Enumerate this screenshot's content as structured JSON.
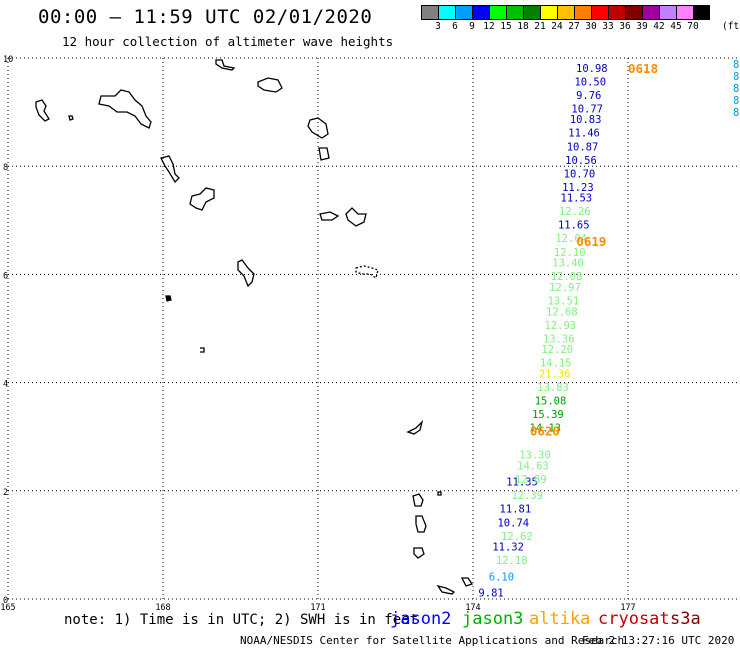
{
  "header": {
    "title": "00:00 – 11:59 UTC 02/01/2020",
    "subtitle": "12 hour collection of altimeter wave heights"
  },
  "swh_scale": {
    "colors": [
      "#808080",
      "#00ffff",
      "#00a0ff",
      "#0000ff",
      "#00ff00",
      "#00c000",
      "#008000",
      "#ffff00",
      "#ffc000",
      "#ff8000",
      "#ff0000",
      "#c00000",
      "#800000",
      "#a000a0",
      "#c080ff",
      "#ff80ff",
      "#000000"
    ],
    "labels": [
      "3",
      "6",
      "9",
      "12",
      "15",
      "18",
      "21",
      "24",
      "27",
      "30",
      "33",
      "36",
      "39",
      "42",
      "45",
      "70"
    ],
    "unit": "(ft)"
  },
  "map": {
    "lat_ticks": [
      "10",
      "8",
      "6",
      "4",
      "2",
      "0"
    ],
    "lon_ticks": [
      "165",
      "168",
      "171",
      "174",
      "177"
    ],
    "pass_labels": [
      {
        "text": "0618",
        "lat": 9.8,
        "lon": 177.0
      },
      {
        "text": "0619",
        "lat": 6.6,
        "lon": 176.0
      },
      {
        "text": "0620",
        "lat": 3.1,
        "lon": 175.1
      }
    ],
    "swh_tracks": [
      {
        "satellite": "jason2",
        "color": "#0000c0",
        "points": [
          {
            "lat": 9.8,
            "lon": 176.3,
            "swh": "10.98"
          },
          {
            "lat": 9.55,
            "lon": 176.27,
            "swh": "10.50"
          },
          {
            "lat": 9.3,
            "lon": 176.24,
            "swh": "9.76"
          },
          {
            "lat": 9.05,
            "lon": 176.21,
            "swh": "10.77"
          },
          {
            "lat": 8.85,
            "lon": 176.18,
            "swh": "10.83"
          },
          {
            "lat": 8.6,
            "lon": 176.15,
            "swh": "11.46"
          },
          {
            "lat": 8.35,
            "lon": 176.12,
            "swh": "10.87"
          },
          {
            "lat": 8.1,
            "lon": 176.09,
            "swh": "10.56"
          },
          {
            "lat": 7.85,
            "lon": 176.06,
            "swh": "10.70"
          },
          {
            "lat": 7.6,
            "lon": 176.03,
            "swh": "11.23"
          },
          {
            "lat": 7.4,
            "lon": 176.0,
            "swh": "11.53"
          },
          {
            "lat": 6.9,
            "lon": 175.95,
            "swh": "11.65"
          },
          {
            "lat": 2.15,
            "lon": 174.95,
            "swh": "11.35"
          },
          {
            "lat": 1.65,
            "lon": 174.82,
            "swh": "11.81"
          },
          {
            "lat": 1.4,
            "lon": 174.78,
            "swh": "10.74"
          },
          {
            "lat": 0.95,
            "lon": 174.68,
            "swh": "11.32"
          },
          {
            "lat": 0.1,
            "lon": 174.35,
            "swh": "9.81"
          }
        ]
      },
      {
        "satellite": "jason3",
        "color": "#80f080",
        "points": [
          {
            "lat": 7.15,
            "lon": 175.97,
            "swh": "12.26"
          },
          {
            "lat": 6.65,
            "lon": 175.9,
            "swh": "12.04"
          },
          {
            "lat": 6.4,
            "lon": 175.87,
            "swh": "12.10"
          },
          {
            "lat": 6.2,
            "lon": 175.84,
            "swh": "13.40"
          },
          {
            "lat": 5.95,
            "lon": 175.81,
            "swh": "12.08"
          },
          {
            "lat": 5.75,
            "lon": 175.78,
            "swh": "12.97"
          },
          {
            "lat": 5.5,
            "lon": 175.75,
            "swh": "13.51"
          },
          {
            "lat": 5.3,
            "lon": 175.72,
            "swh": "12.68"
          },
          {
            "lat": 5.05,
            "lon": 175.69,
            "swh": "12.93"
          },
          {
            "lat": 4.8,
            "lon": 175.66,
            "swh": "13.36"
          },
          {
            "lat": 4.6,
            "lon": 175.63,
            "swh": "12.20"
          },
          {
            "lat": 4.35,
            "lon": 175.6,
            "swh": "14.15"
          },
          {
            "lat": 3.9,
            "lon": 175.55,
            "swh": "13.83"
          },
          {
            "lat": 2.65,
            "lon": 175.2,
            "swh": "13.30"
          },
          {
            "lat": 2.45,
            "lon": 175.16,
            "swh": "14.63"
          },
          {
            "lat": 2.2,
            "lon": 175.12,
            "swh": "12.89"
          },
          {
            "lat": 1.9,
            "lon": 175.05,
            "swh": "12.39"
          },
          {
            "lat": 1.15,
            "lon": 174.85,
            "swh": "12.62"
          },
          {
            "lat": 0.7,
            "lon": 174.75,
            "swh": "12.18"
          }
        ]
      },
      {
        "satellite": "jason3",
        "color": "#00a000",
        "points": [
          {
            "lat": 3.65,
            "lon": 175.5,
            "swh": "15.08"
          },
          {
            "lat": 3.4,
            "lon": 175.45,
            "swh": "15.39"
          },
          {
            "lat": 3.15,
            "lon": 175.4,
            "swh": "14.13"
          }
        ]
      },
      {
        "satellite": "altika",
        "color": "#ffe000",
        "points": [
          {
            "lat": 4.15,
            "lon": 175.58,
            "swh": "21.36"
          }
        ]
      },
      {
        "satellite": "cryosat",
        "color": "#00a0ff",
        "points": [
          {
            "lat": 0.4,
            "lon": 174.55,
            "swh": "6.10"
          }
        ]
      }
    ],
    "edge_labels": [
      "8",
      "8",
      "8",
      "8",
      "8"
    ]
  },
  "footer": {
    "note": "note: 1) Time is in UTC; 2) SWH is in feet",
    "satellites": [
      {
        "name": "jason2",
        "color": "#0000ff"
      },
      {
        "name": "jason3",
        "color": "#00b000"
      },
      {
        "name": "altika",
        "color": "#ffa000"
      },
      {
        "name": "cryosat",
        "color": "#c00000"
      },
      {
        "name": "s3a",
        "color": "#800000"
      }
    ],
    "credit": "NOAA/NESDIS Center for Satellite Applications and Research",
    "timestamp": "Feb  2 13:27:16 UTC 2020"
  }
}
